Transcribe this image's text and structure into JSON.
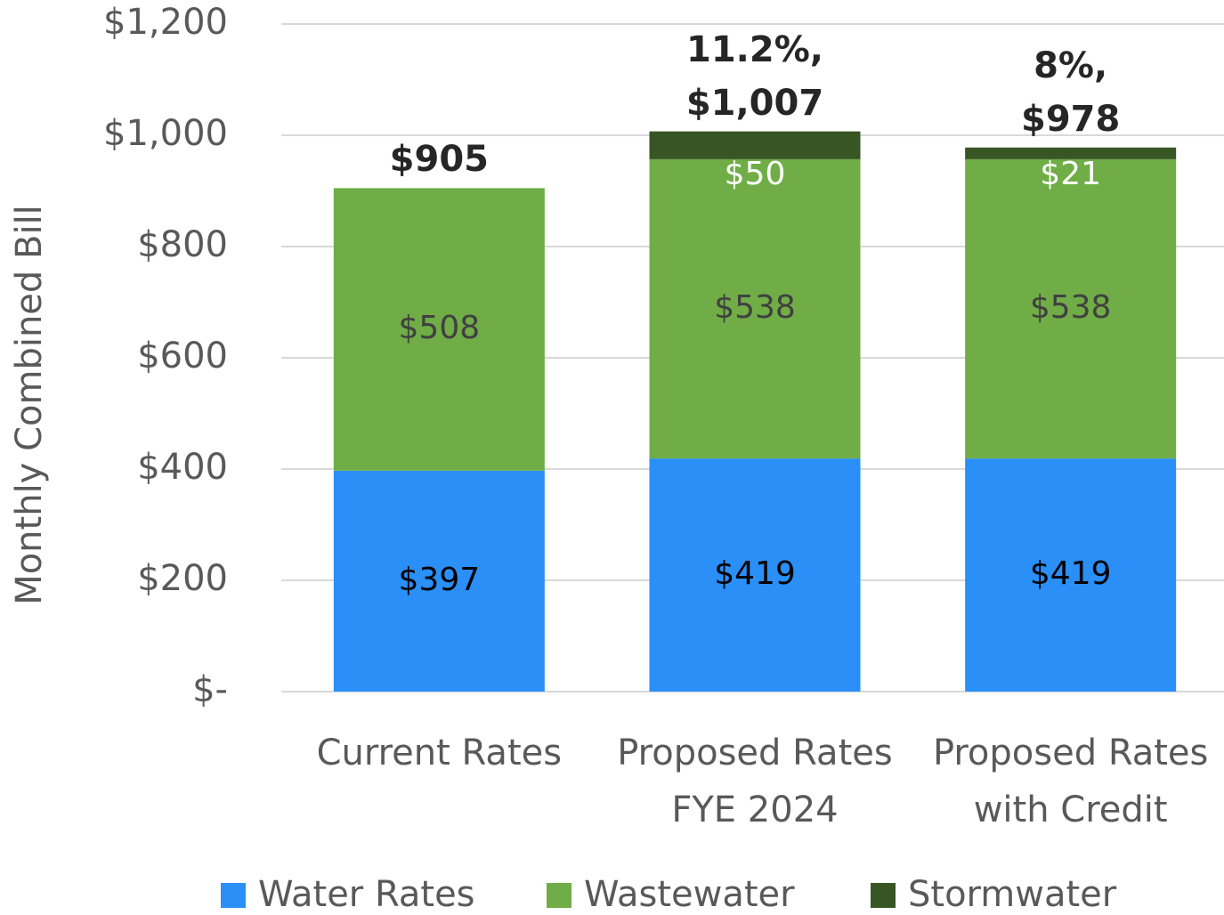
{
  "chart_data": {
    "type": "stacked_bar",
    "y_label": "Monthly Combined Bill",
    "categories": [
      "Current Rates",
      "Proposed Rates FYE 2024",
      "Proposed Rates with Credit"
    ],
    "series": [
      {
        "name": "Water Rates",
        "color": "#2a8ff7",
        "values": [
          397,
          419,
          419
        ],
        "value_labels": [
          "$397",
          "$419",
          "$419"
        ]
      },
      {
        "name": "Wastewater",
        "color": "#70ad47",
        "values": [
          508,
          538,
          538
        ],
        "value_labels": [
          "$508",
          "$538",
          "$538"
        ]
      },
      {
        "name": "Stormwater",
        "color": "#375623",
        "values": [
          null,
          50,
          21
        ],
        "value_labels": [
          null,
          "$50",
          "$21"
        ]
      }
    ],
    "totals": [
      905,
      1007,
      978
    ],
    "total_labels": [
      "$905",
      "11.2%, $1,007",
      "8%, $978"
    ],
    "ylim": [
      0,
      1200
    ],
    "yticks": [
      {
        "value": 0,
        "label": "$-"
      },
      {
        "value": 200,
        "label": "$200"
      },
      {
        "value": 400,
        "label": "$400"
      },
      {
        "value": 600,
        "label": "$600"
      },
      {
        "value": 800,
        "label": "$800"
      },
      {
        "value": 1000,
        "label": "$1,000"
      },
      {
        "value": 1200,
        "label": "$1,200"
      }
    ],
    "grid": true,
    "legend": "bottom"
  }
}
